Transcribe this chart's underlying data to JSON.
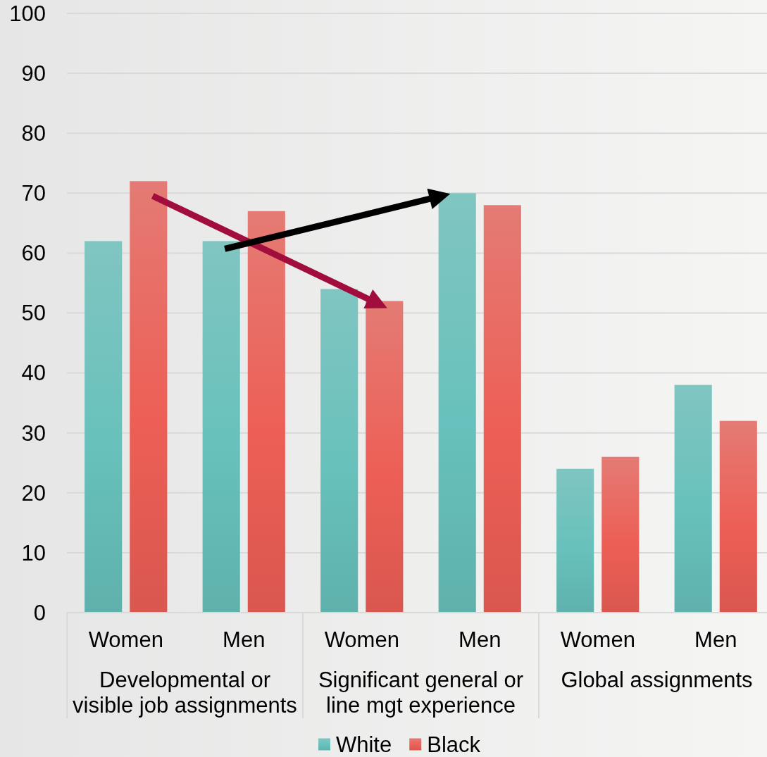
{
  "chart_data": {
    "type": "bar",
    "categories": [
      "Women",
      "Men",
      "Women",
      "Men",
      "Women",
      "Men"
    ],
    "series": [
      {
        "name": "White",
        "color": "#68c1bc",
        "values": [
          62,
          62,
          54,
          70,
          24,
          38
        ]
      },
      {
        "name": "Black",
        "color": "#ed5f56",
        "values": [
          72,
          67,
          52,
          68,
          26,
          32
        ]
      }
    ],
    "ylim": [
      0,
      100
    ],
    "yticks": [
      0,
      10,
      20,
      30,
      40,
      50,
      60,
      70,
      80,
      90,
      100
    ],
    "grid": "y",
    "legend": "bottom",
    "annotations": [
      "Developmental or visible job assignments",
      "Significant general or line mgt experience",
      "Global assignments"
    ]
  }
}
